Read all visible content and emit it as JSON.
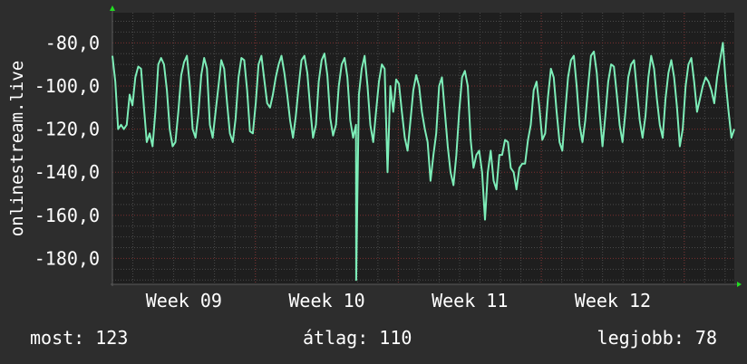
{
  "colors": {
    "background": "#2d2d2d",
    "plot_background": "#1e1e1e",
    "line": "#7dedb8",
    "grid_major": "#7a2e2e",
    "grid_minor": "#4a4a4a",
    "axis_arrow": "#22dd22",
    "text": "#ffffff"
  },
  "stats": {
    "now_label": "most:",
    "now_value": "123",
    "avg_label": "átlag:",
    "avg_value": "110",
    "best_label": "legjobb:",
    "best_value": "78"
  },
  "chart_data": {
    "type": "line",
    "ylabel": "onlinestream.live",
    "xlabel": "",
    "ylim": [
      -192,
      -66
    ],
    "yticks": [
      -80,
      -100,
      -120,
      -140,
      -160,
      -180
    ],
    "ytick_labels": [
      "-80,0",
      "-100,0",
      "-120,0",
      "-140,0",
      "-160,0",
      "-180,0"
    ],
    "x_range": [
      0,
      4.35
    ],
    "xticks": [
      {
        "x": 0.5,
        "label": "Week 09"
      },
      {
        "x": 1.5,
        "label": "Week 10"
      },
      {
        "x": 2.5,
        "label": "Week 11"
      },
      {
        "x": 3.5,
        "label": "Week 12"
      }
    ],
    "grid": true,
    "series": [
      {
        "values": [
          -86,
          -98,
          -120,
          -118,
          -120,
          -118,
          -104,
          -109,
          -96,
          -91,
          -92,
          -110,
          -126,
          -122,
          -128,
          -112,
          -90,
          -87,
          -90,
          -102,
          -120,
          -128,
          -126,
          -112,
          -95,
          -89,
          -86,
          -100,
          -120,
          -124,
          -113,
          -95,
          -87,
          -92,
          -118,
          -124,
          -112,
          -100,
          -88,
          -92,
          -108,
          -122,
          -126,
          -115,
          -96,
          -87,
          -88,
          -102,
          -121,
          -122,
          -108,
          -90,
          -86,
          -97,
          -108,
          -110,
          -104,
          -96,
          -90,
          -86,
          -94,
          -104,
          -116,
          -124,
          -114,
          -100,
          -88,
          -86,
          -94,
          -110,
          -124,
          -118,
          -98,
          -88,
          -85,
          -95,
          -115,
          -123,
          -118,
          -100,
          -90,
          -87,
          -96,
          -116,
          -124,
          -118,
          -104,
          -92,
          -86,
          -100,
          -118,
          -126,
          -112,
          -98,
          -90,
          -92,
          -140,
          -100,
          -112,
          -97,
          -99,
          -112,
          -124,
          -130,
          -116,
          -102,
          -95,
          -100,
          -112,
          -120,
          -126,
          -144,
          -132,
          -122,
          -100,
          -96,
          -112,
          -128,
          -140,
          -146,
          -132,
          -112,
          -96,
          -93,
          -100,
          -125,
          -138,
          -132,
          -130,
          -140,
          -162,
          -140,
          -130,
          -144,
          -148,
          -132,
          -132,
          -125,
          -126,
          -138,
          -140,
          -148,
          -138,
          -136,
          -136,
          -125,
          -118,
          -102,
          -98,
          -110,
          -125,
          -122,
          -105,
          -92,
          -96,
          -112,
          -126,
          -130,
          -112,
          -96,
          -88,
          -86,
          -100,
          -118,
          -126,
          -116,
          -100,
          -86,
          -84,
          -94,
          -112,
          -128,
          -114,
          -98,
          -90,
          -91,
          -104,
          -118,
          -126,
          -112,
          -96,
          -90,
          -88,
          -102,
          -116,
          -124,
          -114,
          -96,
          -86,
          -92,
          -106,
          -118,
          -124,
          -106,
          -94,
          -88,
          -96,
          -110,
          -128,
          -120,
          -100,
          -90,
          -87,
          -98,
          -112,
          -106,
          -100,
          -96,
          -98,
          -102,
          -108,
          -96,
          -88,
          -80,
          -98,
          -112,
          -124,
          -120
        ]
      }
    ],
    "spikes": [
      {
        "x": 1.705,
        "y": -190
      }
    ]
  }
}
